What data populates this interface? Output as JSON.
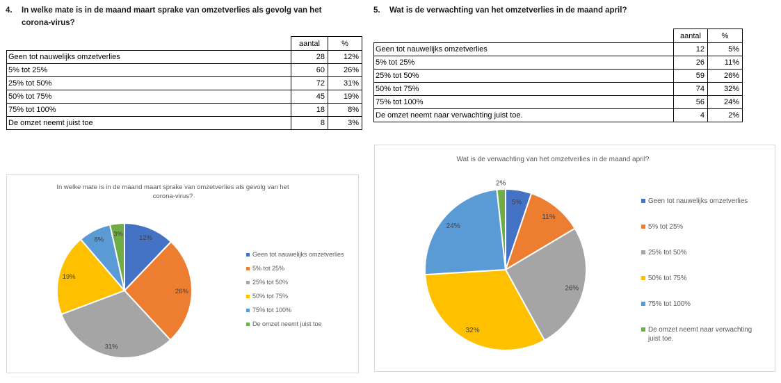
{
  "page": {
    "background": "#ffffff"
  },
  "questions": {
    "q4": {
      "number": "4.",
      "title": "In welke mate is in de maand maart sprake van omzetverlies als gevolg van het corona-virus?",
      "title_lines": [
        "In welke mate is in de maand maart sprake van omzetverlies als gevolg van het",
        "corona-virus?"
      ],
      "table": {
        "headers": [
          "aantal",
          "%"
        ],
        "rows": [
          {
            "label": "Geen tot nauwelijks omzetverlies",
            "aantal": "28",
            "pct": "12%"
          },
          {
            "label": "5% tot 25%",
            "aantal": "60",
            "pct": "26%"
          },
          {
            "label": "25% tot 50%",
            "aantal": "72",
            "pct": "31%"
          },
          {
            "label": "50% tot 75%",
            "aantal": "45",
            "pct": "19%"
          },
          {
            "label": "75% tot 100%",
            "aantal": "18",
            "pct": "8%"
          },
          {
            "label": "De omzet neemt juist toe",
            "aantal": "8",
            "pct": "3%"
          }
        ]
      }
    },
    "q5": {
      "number": "5.",
      "title": "Wat is de verwachting van het omzetverlies in de maand april?",
      "title_lines": [
        "Wat is de verwachting van het omzetverlies in de maand april?"
      ],
      "table": {
        "headers": [
          "aantal",
          "%"
        ],
        "rows": [
          {
            "label": "Geen tot nauwelijks omzetverlies",
            "aantal": "12",
            "pct": "5%"
          },
          {
            "label": "5% tot 25%",
            "aantal": "26",
            "pct": "11%"
          },
          {
            "label": "25% tot 50%",
            "aantal": "59",
            "pct": "26%"
          },
          {
            "label": "50% tot 75%",
            "aantal": "74",
            "pct": "32%"
          },
          {
            "label": "75% tot 100%",
            "aantal": "56",
            "pct": "24%"
          },
          {
            "label": "De omzet neemt naar verwachting juist toe.",
            "aantal": "4",
            "pct": "2%"
          }
        ]
      }
    }
  },
  "chart_data": [
    {
      "type": "pie",
      "title": "In welke mate is in de maand maart sprake van omzetverlies als gevolg van het corona-virus?",
      "title_lines": [
        "In welke mate is in de maand maart sprake van omzetverlies als gevolg van het",
        "corona-virus?"
      ],
      "categories": [
        "Geen tot nauwelijks omzetverlies",
        "5% tot 25%",
        "25% tot 50%",
        "50% tot 75%",
        "75% tot 100%",
        "De omzet neemt juist toe"
      ],
      "values": [
        28,
        60,
        72,
        45,
        18,
        8
      ],
      "percent_labels": [
        "12%",
        "26%",
        "31%",
        "19%",
        "8%",
        "3%"
      ],
      "colors": [
        "#4472C4",
        "#ED7D31",
        "#A5A5A5",
        "#FFC000",
        "#5B9BD5",
        "#70AD47"
      ],
      "legend_position": "right",
      "title_color": "#595959",
      "label_color": "#404040",
      "slice_border_color": "#ffffff"
    },
    {
      "type": "pie",
      "title": "Wat is de verwachting van het omzetverlies in de maand april?",
      "title_lines": [
        "Wat is de verwachting van het omzetverlies in de maand april?"
      ],
      "categories": [
        "Geen tot nauwelijks omzetverlies",
        "5% tot 25%",
        "25% tot 50%",
        "50% tot 75%",
        "75% tot 100%",
        "De omzet neemt naar verwachting juist toe."
      ],
      "values": [
        12,
        26,
        59,
        74,
        56,
        4
      ],
      "percent_labels": [
        "5%",
        "11%",
        "26%",
        "32%",
        "24%",
        "2%"
      ],
      "colors": [
        "#4472C4",
        "#ED7D31",
        "#A5A5A5",
        "#FFC000",
        "#5B9BD5",
        "#70AD47"
      ],
      "legend_position": "right",
      "title_color": "#595959",
      "label_color": "#404040",
      "slice_border_color": "#ffffff"
    }
  ]
}
